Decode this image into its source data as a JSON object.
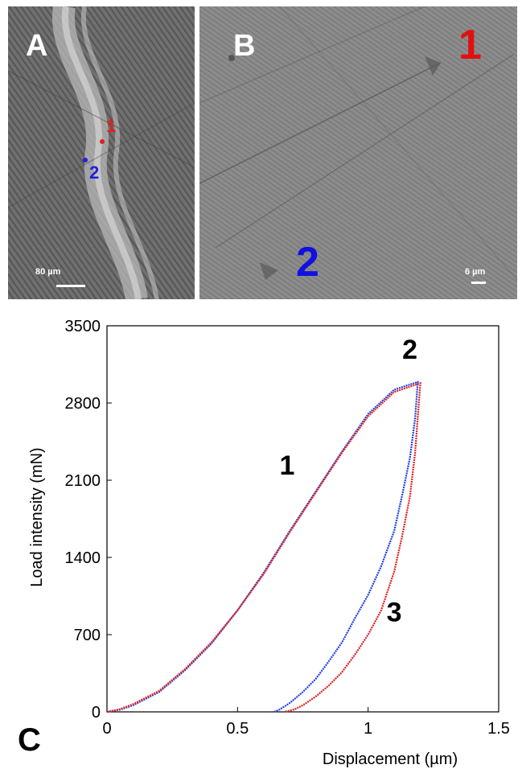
{
  "panel_a": {
    "letter": "A",
    "marker_1": "1",
    "marker_2": "2",
    "scale": "80 µm",
    "colors": {
      "marker_1": "#e02020",
      "marker_2": "#2020e0"
    }
  },
  "panel_b": {
    "letter": "B",
    "marker_1": "1",
    "marker_2": "2",
    "scale": "6 µm",
    "colors": {
      "marker_1": "#e01010",
      "marker_2": "#1010e0"
    }
  },
  "panel_c": {
    "letter": "C"
  },
  "chart_data": {
    "type": "line",
    "xlabel": "Displacement (µm)",
    "ylabel": "Load intensity (mN)",
    "xlim": [
      0,
      1.5
    ],
    "ylim": [
      0,
      3500
    ],
    "xticks": [
      0,
      0.5,
      1,
      1.5
    ],
    "xtick_labels": [
      "0",
      "0.5",
      "1",
      "1.5"
    ],
    "yticks": [
      0,
      700,
      1400,
      2100,
      2800,
      3500
    ],
    "ytick_labels": [
      "0",
      "700",
      "1400",
      "2100",
      "2800",
      "3500"
    ],
    "grid": false,
    "annotations": [
      {
        "text": "1",
        "x": 0.69,
        "y": 2150
      },
      {
        "text": "2",
        "x": 1.16,
        "y": 3200
      },
      {
        "text": "3",
        "x": 1.1,
        "y": 820
      }
    ],
    "series": [
      {
        "color": "#2040e0",
        "x": [
          0.0,
          0.05,
          0.1,
          0.2,
          0.3,
          0.4,
          0.5,
          0.6,
          0.7,
          0.8,
          0.9,
          1.0,
          1.1,
          1.15,
          1.19,
          1.19,
          1.18,
          1.16,
          1.13,
          1.1,
          1.05,
          1.0,
          0.95,
          0.9,
          0.85,
          0.8,
          0.75,
          0.7,
          0.66,
          0.64
        ],
        "y": [
          0,
          20,
          60,
          180,
          380,
          620,
          920,
          1260,
          1640,
          2000,
          2360,
          2700,
          2920,
          2960,
          2990,
          2990,
          2660,
          2300,
          1960,
          1640,
          1320,
          1060,
          850,
          630,
          460,
          300,
          180,
          80,
          20,
          0
        ]
      },
      {
        "color": "#e02020",
        "x": [
          0.0,
          0.05,
          0.1,
          0.2,
          0.3,
          0.4,
          0.5,
          0.6,
          0.7,
          0.8,
          0.9,
          1.0,
          1.1,
          1.15,
          1.2,
          1.2,
          1.18,
          1.16,
          1.13,
          1.1,
          1.05,
          1.0,
          0.95,
          0.9,
          0.85,
          0.8,
          0.75,
          0.72,
          0.7,
          0.68
        ],
        "y": [
          0,
          25,
          70,
          190,
          390,
          630,
          920,
          1250,
          1630,
          1990,
          2350,
          2680,
          2900,
          2940,
          2980,
          2980,
          2350,
          1950,
          1590,
          1270,
          920,
          700,
          520,
          360,
          240,
          140,
          60,
          25,
          10,
          0
        ]
      }
    ]
  }
}
